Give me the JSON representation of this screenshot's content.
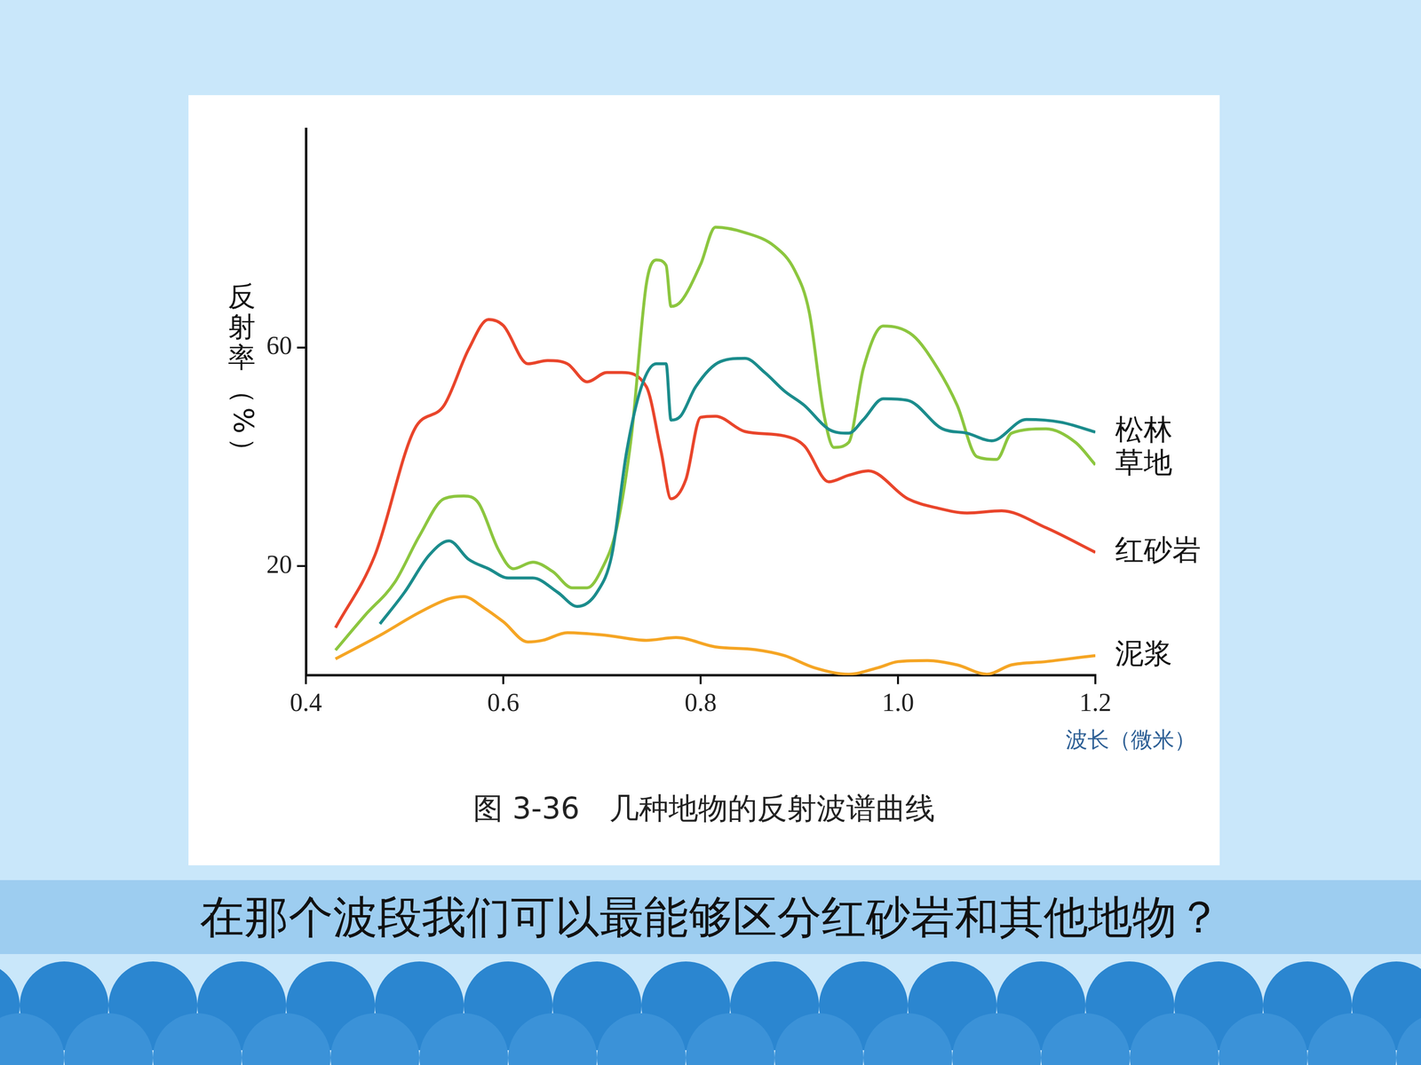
{
  "chart_data": {
    "type": "line",
    "title": "图 3-36　几种地物的反射波谱曲线",
    "y_label": "反射率（%）",
    "x_label": "波长（微米）",
    "xlim": [
      0.4,
      1.2
    ],
    "xticks": [
      0.4,
      0.6,
      0.8,
      {
        "value": 1,
        "label": "1.0"
      },
      1.2
    ],
    "ylim": [
      0,
      100
    ],
    "yticks": [
      20,
      60
    ],
    "grid": false,
    "series": [
      {
        "name": "松林",
        "color": "#1b8c8c",
        "x": [
          0.475,
          0.5,
          0.525,
          0.545,
          0.565,
          0.585,
          0.605,
          0.63,
          0.655,
          0.675,
          0.695,
          0.71,
          0.725,
          0.74,
          0.755,
          0.765,
          0.77,
          0.78,
          0.795,
          0.82,
          0.845,
          0.865,
          0.885,
          0.905,
          0.93,
          0.95,
          0.965,
          0.985,
          1.01,
          1.045,
          1.07,
          1.095,
          1.13,
          1.165,
          1.2
        ],
        "values": [
          9.4,
          15.2,
          22,
          24.6,
          21.2,
          19.5,
          17.8,
          17.8,
          15.2,
          12.6,
          15.2,
          22,
          40.9,
          52.8,
          57,
          57,
          46.7,
          47.5,
          52.8,
          57.4,
          58,
          55.4,
          52,
          49.4,
          45,
          44.3,
          46.8,
          50.6,
          50.3,
          45.1,
          44.3,
          42.9,
          46.8,
          46.3,
          44.5
        ]
      },
      {
        "name": "草地",
        "color": "#8cc63f",
        "x": [
          0.43,
          0.46,
          0.49,
          0.515,
          0.54,
          0.56,
          0.575,
          0.595,
          0.61,
          0.63,
          0.65,
          0.67,
          0.685,
          0.7,
          0.715,
          0.73,
          0.745,
          0.755,
          0.765,
          0.77,
          0.78,
          0.8,
          0.815,
          0.845,
          0.875,
          0.895,
          0.91,
          0.925,
          0.935,
          0.95,
          0.965,
          0.985,
          1.015,
          1.04,
          1.06,
          1.08,
          1.1,
          1.115,
          1.15,
          1.18,
          1.2
        ],
        "values": [
          4.6,
          11,
          17,
          25.5,
          32.3,
          32.8,
          31.5,
          23,
          19.5,
          20.7,
          19,
          16,
          16,
          19.5,
          27,
          44,
          71.6,
          76,
          75,
          67.5,
          68.4,
          75.2,
          82,
          81,
          78.5,
          74.2,
          66.5,
          47.7,
          41.7,
          42.6,
          56.2,
          63.9,
          62.2,
          56.2,
          49.4,
          40,
          39.5,
          44.3,
          45.1,
          42.6,
          38.5
        ]
      },
      {
        "name": "红砂岩",
        "color": "#e9452b",
        "x": [
          0.43,
          0.47,
          0.51,
          0.54,
          0.565,
          0.585,
          0.6,
          0.625,
          0.645,
          0.665,
          0.685,
          0.705,
          0.72,
          0.745,
          0.76,
          0.77,
          0.785,
          0.8,
          0.815,
          0.845,
          0.885,
          0.905,
          0.93,
          0.95,
          0.97,
          1.01,
          1.04,
          1.07,
          1.105,
          1.15,
          1.2
        ],
        "values": [
          8.7,
          22,
          45,
          49.4,
          59.7,
          65.1,
          64,
          57,
          57.6,
          57,
          53.7,
          55.4,
          55.4,
          52.8,
          40.9,
          32.3,
          35.8,
          47.2,
          47.4,
          44.6,
          43.8,
          42,
          35.4,
          36.6,
          37.4,
          32.3,
          30.6,
          29.7,
          30.1,
          27,
          22.5
        ]
      },
      {
        "name": "泥浆",
        "color": "#f5a524",
        "x": [
          0.43,
          0.475,
          0.515,
          0.545,
          0.56,
          0.58,
          0.6,
          0.625,
          0.64,
          0.665,
          0.705,
          0.745,
          0.775,
          0.815,
          0.855,
          0.885,
          0.915,
          0.95,
          0.98,
          1.0,
          1.03,
          1.06,
          1.09,
          1.115,
          1.15,
          1.19,
          1.2
        ],
        "values": [
          3,
          7.3,
          11.5,
          14,
          14.4,
          12.4,
          9.8,
          6.1,
          6.4,
          7.8,
          7.3,
          6.4,
          6.9,
          5.2,
          4.7,
          3.6,
          1.4,
          0.2,
          1.4,
          2.5,
          2.7,
          1.9,
          0.2,
          1.9,
          2.5,
          3.4,
          3.6
        ]
      }
    ]
  },
  "slide": {
    "question": "在那个波段我们可以最能够区分红砂岩和其他地物？"
  }
}
